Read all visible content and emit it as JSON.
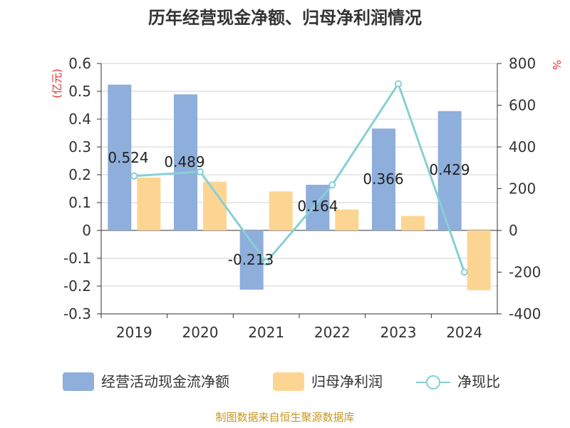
{
  "chart_data": {
    "type": "bar",
    "title": "历年经营现金净额、归母净利润情况",
    "categories": [
      "2019",
      "2020",
      "2021",
      "2022",
      "2023",
      "2024"
    ],
    "y_left": {
      "unit_label": "(亿元)",
      "ylim": [
        -0.3,
        0.6
      ],
      "ticks": [
        "0.6",
        "0.5",
        "0.4",
        "0.3",
        "0.2",
        "0.1",
        "0",
        "-0.1",
        "-0.2",
        "-0.3"
      ]
    },
    "y_right": {
      "unit_label": "%",
      "ylim": [
        -400,
        800
      ],
      "ticks": [
        "800",
        "600",
        "400",
        "200",
        "0",
        "-200",
        "-400"
      ]
    },
    "series": [
      {
        "name": "经营活动现金流净额",
        "type": "bar",
        "axis": "left",
        "color": "#8eaedb",
        "values": [
          0.524,
          0.489,
          -0.213,
          0.164,
          0.366,
          0.429
        ],
        "labels": [
          "0.524",
          "0.489",
          "-0.213",
          "0.164",
          "0.366",
          "0.429"
        ]
      },
      {
        "name": "归母净利润",
        "type": "bar",
        "axis": "left",
        "color": "#fdd593",
        "values": [
          0.19,
          0.175,
          0.14,
          0.075,
          0.052,
          -0.215
        ]
      },
      {
        "name": "净现比",
        "type": "line",
        "axis": "right",
        "color": "#87d0d4",
        "values": [
          261,
          281,
          -152,
          218,
          703,
          -200
        ]
      }
    ],
    "legend_position": "bottom",
    "grid": true
  },
  "footer": {
    "source": "制图数据来自恒生聚源数据库"
  }
}
